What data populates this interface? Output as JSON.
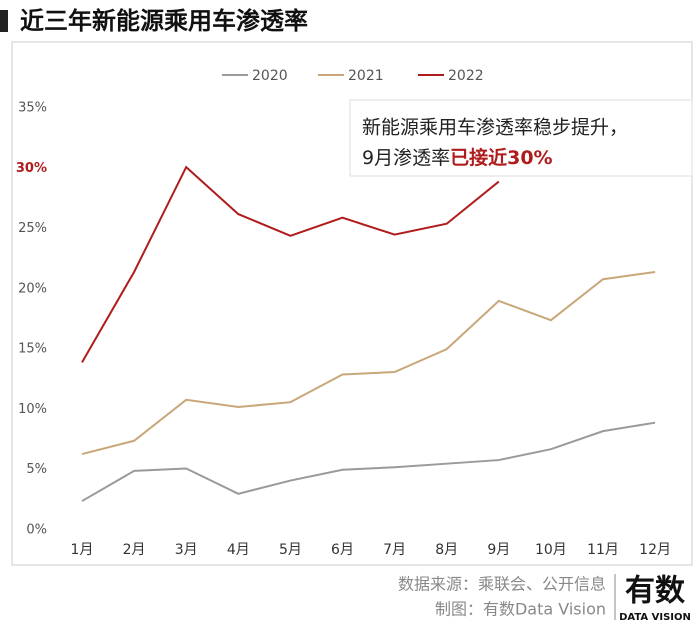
{
  "chart_data": {
    "type": "line",
    "title": "近三年新能源乘用车渗透率",
    "categories": [
      "1月",
      "2月",
      "3月",
      "4月",
      "5月",
      "6月",
      "7月",
      "8月",
      "9月",
      "10月",
      "11月",
      "12月"
    ],
    "series": [
      {
        "name": "2020",
        "color": "#9a9a9a",
        "values": [
          2.4,
          4.9,
          5.1,
          3.0,
          4.1,
          5.0,
          5.2,
          5.5,
          5.8,
          6.7,
          8.2,
          8.9
        ]
      },
      {
        "name": "2021",
        "color": "#c9a77a",
        "values": [
          6.3,
          7.4,
          10.8,
          10.2,
          10.6,
          12.9,
          13.1,
          15.0,
          19.0,
          17.4,
          20.8,
          21.4
        ]
      },
      {
        "name": "2022",
        "color": "#b01c1c",
        "values": [
          13.9,
          21.4,
          30.1,
          26.2,
          24.4,
          25.9,
          24.5,
          25.4,
          28.9,
          null,
          null,
          null
        ]
      }
    ],
    "ylim": [
      0,
      35
    ],
    "yticks": [
      {
        "value": 0,
        "label": "0%"
      },
      {
        "value": 5,
        "label": "5%"
      },
      {
        "value": 10,
        "label": "10%"
      },
      {
        "value": 15,
        "label": "15%"
      },
      {
        "value": 20,
        "label": "20%"
      },
      {
        "value": 25,
        "label": "25%"
      },
      {
        "value": 30,
        "label": "30%",
        "color": "#b01c1c"
      },
      {
        "value": 35,
        "label": "35%"
      }
    ],
    "grid": false,
    "legend": "top",
    "annotation": {
      "line1": "新能源乘用车渗透率稳步提升，",
      "line2_plain": "9月渗透率",
      "line2_highlight": "已接近30%",
      "highlight_color": "#b01c1c"
    },
    "footer": {
      "source": "数据来源：乘联会、公开信息",
      "credit": "制图：有数Data Vision",
      "logo": "有数",
      "logo_sub": "DATA VISION"
    }
  }
}
